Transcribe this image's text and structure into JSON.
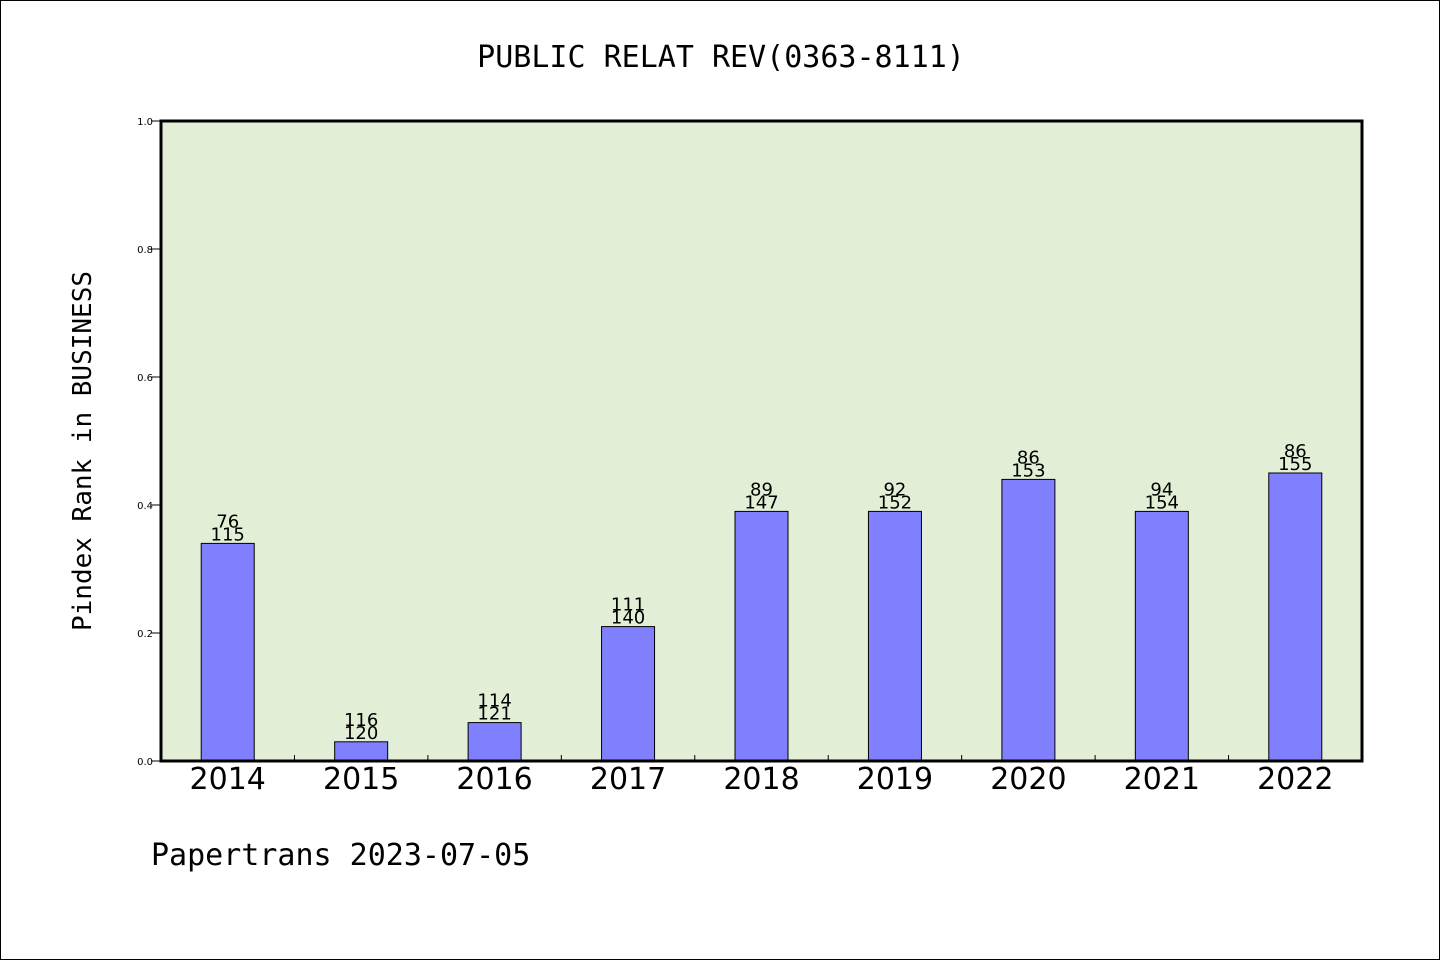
{
  "chart_data": {
    "type": "bar",
    "title": "PUBLIC RELAT REV(0363-8111)",
    "ylabel": "Pindex Rank in BUSINESS",
    "xlabel": "",
    "categories": [
      "2014",
      "2015",
      "2016",
      "2017",
      "2018",
      "2019",
      "2020",
      "2021",
      "2022"
    ],
    "values": [
      0.34,
      0.03,
      0.06,
      0.21,
      0.39,
      0.39,
      0.44,
      0.39,
      0.45
    ],
    "rank_labels": [
      "76",
      "116",
      "114",
      "111",
      "89",
      "92",
      "86",
      "94",
      "86"
    ],
    "total_labels": [
      "115",
      "120",
      "121",
      "140",
      "147",
      "152",
      "153",
      "154",
      "155"
    ],
    "ylim": [
      0.0,
      1.0
    ],
    "yticks": [
      "0.0",
      "0.2",
      "0.4",
      "0.6",
      "0.8",
      "1.0"
    ],
    "grid": false,
    "colors": {
      "bar_fill": "#8080ff",
      "plot_background": "#e2efd6",
      "axis": "#000000"
    }
  },
  "footer": {
    "credit": "Papertrans 2023-07-05"
  }
}
